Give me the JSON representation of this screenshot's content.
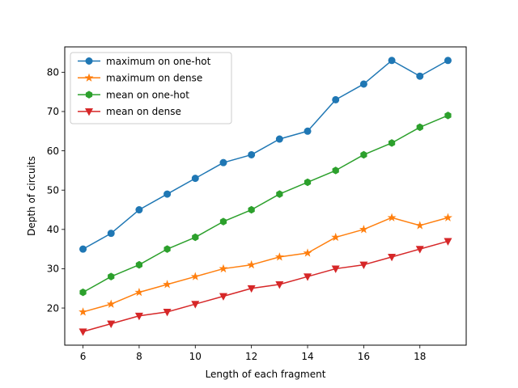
{
  "chart_data": {
    "type": "line",
    "x": [
      6,
      7,
      8,
      9,
      10,
      11,
      12,
      13,
      14,
      15,
      16,
      17,
      18,
      19
    ],
    "xlabel": "Length of each fragment",
    "ylabel": "Depth of circuits",
    "xlim": [
      5.35,
      19.65
    ],
    "ylim": [
      10.55,
      86.45
    ],
    "xticks": [
      6,
      8,
      10,
      12,
      14,
      16,
      18
    ],
    "yticks": [
      20,
      30,
      40,
      50,
      60,
      70,
      80
    ],
    "grid": false,
    "legend_position": "top-left",
    "series": [
      {
        "name": "maximum on one-hot",
        "color": "#1f77b4",
        "marker": "circle",
        "values": [
          35,
          39,
          45,
          49,
          53,
          57,
          59,
          63,
          65,
          73,
          77,
          83,
          79,
          83
        ]
      },
      {
        "name": "maximum on dense",
        "color": "#ff7f0e",
        "marker": "star",
        "values": [
          19,
          21,
          24,
          26,
          28,
          30,
          31,
          33,
          34,
          38,
          40,
          43,
          41,
          43
        ]
      },
      {
        "name": "mean on one-hot",
        "color": "#2ca02c",
        "marker": "hexagon",
        "values": [
          24,
          28,
          31,
          35,
          38,
          42,
          45,
          49,
          52,
          55,
          59,
          62,
          66,
          69
        ]
      },
      {
        "name": "mean on dense",
        "color": "#d62728",
        "marker": "triangle-down",
        "values": [
          14,
          16,
          18,
          19,
          21,
          23,
          25,
          26,
          28,
          30,
          31,
          33,
          35,
          37
        ]
      }
    ]
  }
}
